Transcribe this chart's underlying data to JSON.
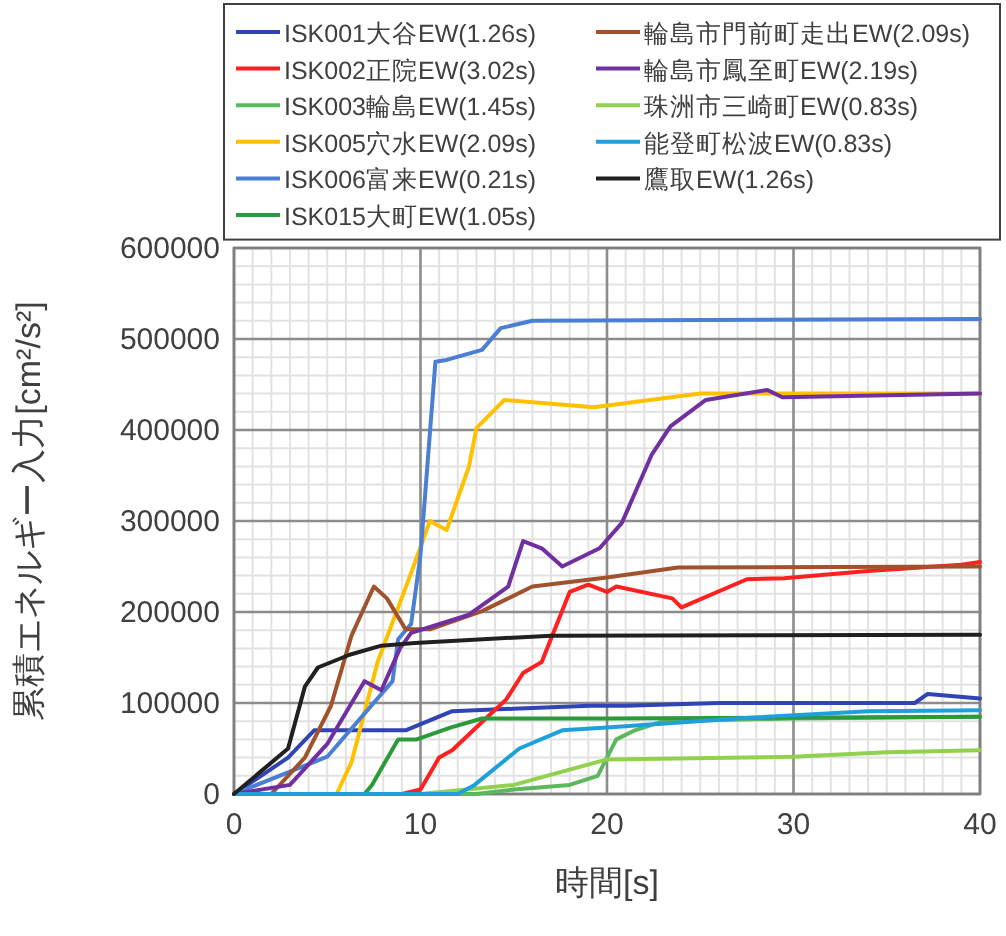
{
  "chart_data": {
    "type": "line",
    "xlabel": "時間[s]",
    "ylabel": "累積エネルギー入力[cm²/s²]",
    "xlim": [
      0,
      40
    ],
    "ylim": [
      0,
      600000
    ],
    "xticks": [
      0,
      10,
      20,
      30,
      40
    ],
    "yticks": [
      0,
      100000,
      200000,
      300000,
      400000,
      500000,
      600000
    ],
    "grid": true,
    "legend": "top",
    "marker": "none",
    "line_style": "solid",
    "series": [
      {
        "name": "ISK001大谷EW(1.26s)",
        "color": "#3044b4",
        "x": [
          0,
          2.9,
          4.3,
          9.2,
          11.7,
          15.3,
          19.1,
          21,
          26,
          36.5,
          37.2,
          40
        ],
        "values": [
          0,
          40000,
          70000,
          70000,
          91000,
          94000,
          97000,
          97000,
          100000,
          100000,
          110000,
          105000
        ]
      },
      {
        "name": "ISK002正院EW(3.02s)",
        "color": "#ff2020",
        "x": [
          0,
          9,
          10,
          11,
          11.7,
          13.5,
          14.6,
          15.5,
          16.5,
          18,
          19,
          20,
          20.5,
          23.5,
          24,
          27.5,
          29.5,
          34,
          39,
          40
        ],
        "values": [
          0,
          0,
          5000,
          40000,
          48000,
          83000,
          104000,
          133000,
          145000,
          222000,
          230000,
          222000,
          228000,
          215000,
          205000,
          236000,
          237000,
          245000,
          252000,
          255000
        ]
      },
      {
        "name": "ISK003輪島EW(1.45s)",
        "color": "#5cb85c",
        "x": [
          0,
          13,
          15,
          18,
          19.5,
          20.5,
          21.5,
          23,
          30,
          40
        ],
        "values": [
          0,
          0,
          5000,
          10000,
          20000,
          60000,
          70000,
          80000,
          83000,
          85000
        ]
      },
      {
        "name": "ISK005穴水EW(2.09s)",
        "color": "#ffc000",
        "x": [
          0,
          5.5,
          6.3,
          7.7,
          9.5,
          10.5,
          11.4,
          12.6,
          13,
          14.5,
          19.3,
          25,
          40
        ],
        "values": [
          0,
          0,
          35000,
          145000,
          243000,
          300000,
          290000,
          360000,
          402000,
          433000,
          425000,
          440000,
          440000
        ]
      },
      {
        "name": "ISK006富来EW(0.21s)",
        "color": "#4a7fd4",
        "x": [
          0,
          5,
          8.5,
          8.8,
          9.5,
          10,
          10.8,
          11.4,
          13.3,
          14.3,
          16,
          40
        ],
        "values": [
          0,
          41000,
          124000,
          170000,
          187000,
          263000,
          475000,
          477000,
          488000,
          512000,
          520000,
          522000
        ]
      },
      {
        "name": "ISK015大町EW(1.05s)",
        "color": "#2a9a3a",
        "x": [
          0,
          7,
          7.4,
          8.8,
          9.8,
          11.6,
          13.3,
          17,
          20,
          40
        ],
        "values": [
          0,
          0,
          10000,
          60000,
          60000,
          73000,
          83000,
          83000,
          83000,
          85000
        ]
      },
      {
        "name": "輪島市門前町走出EW(2.09s)",
        "color": "#a0522d",
        "x": [
          0,
          2,
          3.8,
          5.2,
          6.3,
          7.5,
          8.2,
          9.2,
          10.5,
          13.3,
          16,
          20,
          23.8,
          40
        ],
        "values": [
          0,
          0,
          40000,
          97000,
          174000,
          228000,
          215000,
          181000,
          181000,
          201000,
          228000,
          238000,
          249000,
          250000
        ]
      },
      {
        "name": "輪島市鳳至町EW(2.19s)",
        "color": "#7030a0",
        "x": [
          0,
          3,
          5,
          7,
          7.9,
          8.9,
          9.5,
          12.6,
          14.7,
          15.5,
          16.5,
          17.6,
          19.6,
          20.8,
          22.4,
          23.4,
          25.3,
          28.6,
          29.4,
          40
        ],
        "values": [
          0,
          10000,
          55000,
          124000,
          114000,
          160000,
          177000,
          197000,
          228000,
          278000,
          270000,
          250000,
          270000,
          298000,
          373000,
          404000,
          433000,
          444000,
          436000,
          440000
        ]
      },
      {
        "name": "珠洲市三崎町EW(0.83s)",
        "color": "#92d050",
        "x": [
          0,
          10,
          15,
          20,
          30,
          35,
          40
        ],
        "values": [
          0,
          0,
          10000,
          38000,
          41000,
          46000,
          48000
        ]
      },
      {
        "name": "能登町松波EW(0.83s)",
        "color": "#1ea0dc",
        "x": [
          0,
          12,
          12.9,
          15.3,
          17.6,
          20,
          27,
          34,
          40
        ],
        "values": [
          0,
          0,
          10000,
          50000,
          70000,
          73000,
          83000,
          91000,
          92000
        ]
      },
      {
        "name": "鷹取EW(1.26s)",
        "color": "#202020",
        "x": [
          0,
          2.9,
          3.8,
          4.5,
          6.2,
          7.9,
          9.7,
          17,
          40
        ],
        "values": [
          0,
          50000,
          118000,
          139000,
          153000,
          163000,
          166000,
          174000,
          175000
        ]
      }
    ]
  }
}
